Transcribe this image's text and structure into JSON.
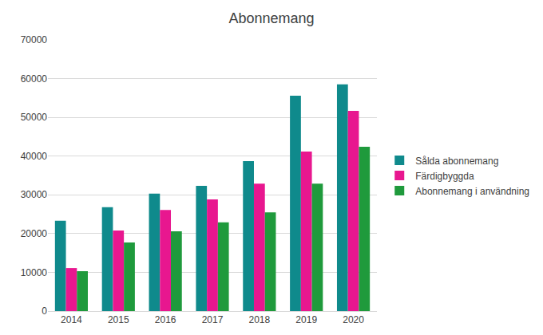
{
  "chart_data": {
    "type": "bar",
    "title": "Abonnemang",
    "categories": [
      "2014",
      "2015",
      "2016",
      "2017",
      "2018",
      "2019",
      "2020"
    ],
    "series": [
      {
        "name": "Sålda abonnemang",
        "color": "#0f8a8c",
        "values": [
          23300,
          26800,
          30300,
          32300,
          38700,
          55600,
          58500
        ]
      },
      {
        "name": "Färdigbyggda",
        "color": "#e8178f",
        "values": [
          11100,
          20800,
          26100,
          28800,
          32900,
          41200,
          51700
        ]
      },
      {
        "name": "Abonnemang i användning",
        "color": "#1f9a3c",
        "values": [
          10300,
          17700,
          20600,
          22900,
          25500,
          32900,
          42400
        ]
      }
    ],
    "ylim": [
      0,
      70000
    ],
    "yticks": [
      0,
      10000,
      20000,
      30000,
      40000,
      50000,
      60000,
      70000
    ],
    "grid": true,
    "legend": "right"
  }
}
